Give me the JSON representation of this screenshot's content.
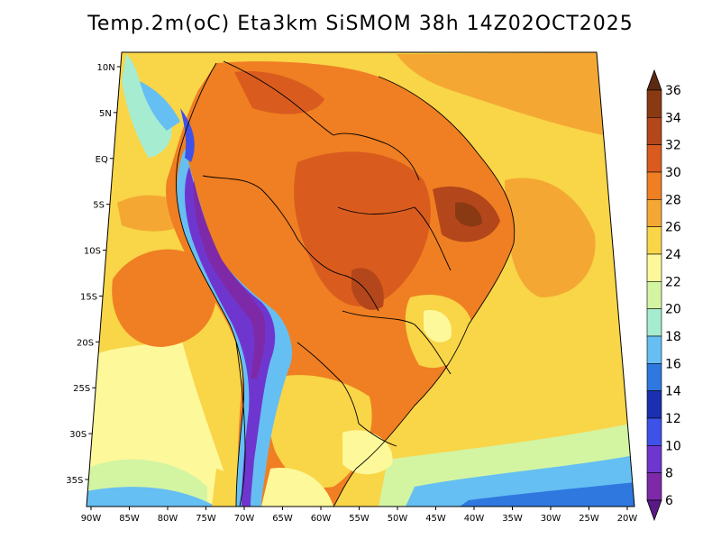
{
  "title": "Temp.2m(oC) Eta3km SiSMOM 38h 14Z02OCT2025",
  "x_ticks": [
    "90W",
    "85W",
    "80W",
    "75W",
    "70W",
    "65W",
    "60W",
    "55W",
    "50W",
    "45W",
    "40W",
    "35W",
    "30W",
    "25W",
    "20W"
  ],
  "y_ticks": [
    "10N",
    "5N",
    "EQ",
    "5S",
    "10S",
    "15S",
    "20S",
    "25S",
    "30S",
    "35S"
  ],
  "colorbar": {
    "labels": [
      "36",
      "34",
      "32",
      "30",
      "28",
      "26",
      "24",
      "22",
      "20",
      "18",
      "16",
      "14",
      "12",
      "10",
      "8",
      "6"
    ],
    "colors": [
      "#5c2a12",
      "#8a3a12",
      "#b4461b",
      "#d95c1e",
      "#ef7f22",
      "#f4a833",
      "#f9d548",
      "#fdf89a",
      "#d3f5a2",
      "#a6ecd1",
      "#66bff2",
      "#2f78e0",
      "#1b2fb0",
      "#3e52e8",
      "#6f36cf",
      "#7e2aa8",
      "#5a1a86"
    ]
  }
}
